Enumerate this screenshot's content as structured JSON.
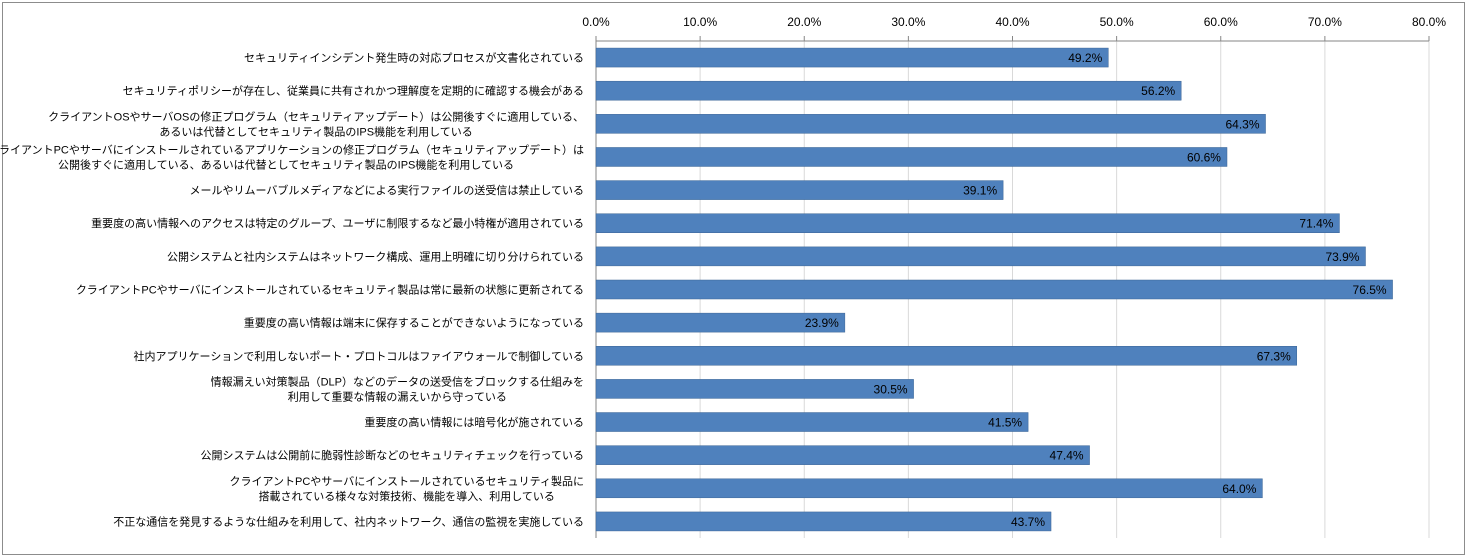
{
  "chart_data": {
    "type": "bar",
    "orientation": "horizontal",
    "title": "",
    "xlabel": "",
    "ylabel": "",
    "xlim": [
      0,
      80
    ],
    "tick_step": 10,
    "tick_labels": [
      "0.0%",
      "10.0%",
      "20.0%",
      "30.0%",
      "40.0%",
      "50.0%",
      "60.0%",
      "70.0%",
      "80.0%"
    ],
    "axis_position": "top",
    "grid": true,
    "bar_color": "#4f81bd",
    "categories": [
      [
        "セキュリティインシデント発生時の対応プロセスが文書化されている"
      ],
      [
        "セキュリティポリシーが存在し、従業員に共有されかつ理解度を定期的に確認する機会がある"
      ],
      [
        "クライアントOSやサーバOSの修正プログラム（セキュリティアップデート）は公開後すぐに適用している、",
        "あるいは代替としてセキュリティ製品のIPS機能を利用している"
      ],
      [
        "クライアントPCやサーバにインストールされているアプリケーションの修正プログラム（セキュリティアップデート）は",
        "公開後すぐに適用している、あるいは代替としてセキュリティ製品のIPS機能を利用している"
      ],
      [
        "メールやリムーバブルメディアなどによる実行ファイルの送受信は禁止している"
      ],
      [
        "重要度の高い情報へのアクセスは特定のグループ、ユーザに制限するなど最小特権が適用されている"
      ],
      [
        "公開システムと社内システムはネットワーク構成、運用上明確に切り分けられている"
      ],
      [
        "クライアントPCやサーバにインストールされているセキュリティ製品は常に最新の状態に更新されてる"
      ],
      [
        "重要度の高い情報は端末に保存することができないようになっている"
      ],
      [
        "社内アプリケーションで利用しないポート・プロトコルはファイアウォールで制御している"
      ],
      [
        "情報漏えい対策製品（DLP）などのデータの送受信をブロックする仕組みを",
        "利用して重要な情報の漏えいから守っている"
      ],
      [
        "重要度の高い情報には暗号化が施されている"
      ],
      [
        "公開システムは公開前に脆弱性診断などのセキュリティチェックを行っている"
      ],
      [
        "クライアントPCやサーバにインストールされているセキュリティ製品に",
        "搭載されている様々な対策技術、機能を導入、利用している"
      ],
      [
        "不正な通信を発見するような仕組みを利用して、社内ネットワーク、通信の監視を実施している"
      ]
    ],
    "values": [
      49.2,
      56.2,
      64.3,
      60.6,
      39.1,
      71.4,
      73.9,
      76.5,
      23.9,
      67.3,
      30.5,
      41.5,
      47.4,
      64.0,
      43.7
    ],
    "data_labels": [
      "49.2%",
      "56.2%",
      "64.3%",
      "60.6%",
      "39.1%",
      "71.4%",
      "73.9%",
      "76.5%",
      "23.9%",
      "67.3%",
      "30.5%",
      "41.5%",
      "47.4%",
      "64.0%",
      "43.7%"
    ]
  }
}
